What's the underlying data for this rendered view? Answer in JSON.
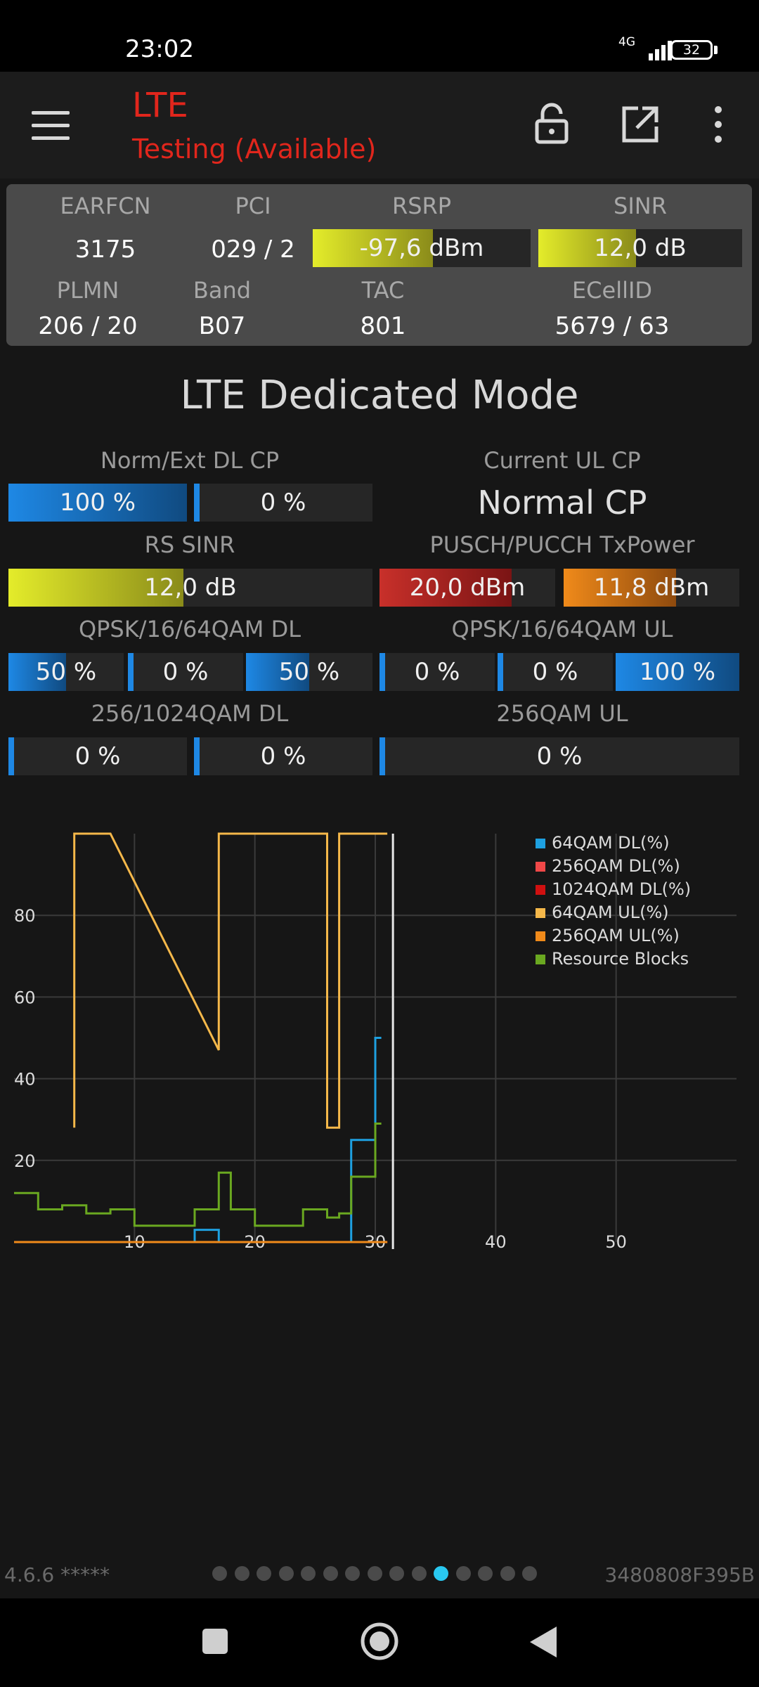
{
  "status_bar": {
    "time": "23:02",
    "network": "4G",
    "battery": "32"
  },
  "app_bar": {
    "title": "LTE",
    "subtitle": "Testing (Available)"
  },
  "info": {
    "earfcn_label": "EARFCN",
    "earfcn": "3175",
    "pci_label": "PCI",
    "pci": "029 / 2",
    "rsrp_label": "RSRP",
    "rsrp": "-97,6 dBm",
    "rsrp_level": 0.55,
    "sinr_label": "SINR",
    "sinr": "12,0 dB",
    "sinr_level": 0.48,
    "plmn_label": "PLMN",
    "plmn": "206 / 20",
    "band_label": "Band",
    "band": "B07",
    "tac_label": "TAC",
    "tac": "801",
    "ecellid_label": "ECellID",
    "ecellid": "5679 / 63"
  },
  "dedicated": {
    "title": "LTE Dedicated Mode",
    "dl_cp_label": "Norm/Ext DL CP",
    "dl_cp_norm": "100 %",
    "dl_cp_norm_level": 1.0,
    "dl_cp_ext": "0 %",
    "dl_cp_ext_level": 0.0,
    "ul_cp_label": "Current UL CP",
    "ul_cp_value": "Normal CP",
    "rs_sinr_label": "RS SINR",
    "rs_sinr": "12,0 dB",
    "rs_sinr_level": 0.48,
    "txpower_label": "PUSCH/PUCCH TxPower",
    "pusch": "20,0 dBm",
    "pusch_level": 0.75,
    "pucch": "11,8 dBm",
    "pucch_level": 0.64,
    "qam_dl_label": "QPSK/16/64QAM DL",
    "qam_dl": [
      "50 %",
      "0 %",
      "50 %"
    ],
    "qam_dl_levels": [
      0.5,
      0.0,
      0.5
    ],
    "qam_ul_label": "QPSK/16/64QAM UL",
    "qam_ul": [
      "0 %",
      "0 %",
      "100 %"
    ],
    "qam_ul_levels": [
      0.0,
      0.0,
      1.0
    ],
    "qam256_dl_label": "256/1024QAM DL",
    "qam256_dl": [
      "0 %",
      "0 %"
    ],
    "qam256_ul_label": "256QAM UL",
    "qam256_ul": "0 %"
  },
  "chart_data": {
    "type": "line",
    "x_ticks": [
      10,
      20,
      30,
      40,
      50
    ],
    "y_ticks": [
      20,
      40,
      60,
      80
    ],
    "xlim": [
      0,
      60
    ],
    "ylim": [
      0,
      100
    ],
    "grid": true,
    "legend_position": "top-right",
    "series": [
      {
        "name": "64QAM DL(%)",
        "color": "#1ea0e0",
        "x": [
          0,
          15,
          15,
          17,
          17,
          28,
          28,
          30,
          30,
          30.5,
          30.5
        ],
        "y": [
          0,
          0,
          3,
          3,
          0,
          0,
          25,
          25,
          50,
          50,
          50
        ]
      },
      {
        "name": "256QAM DL(%)",
        "color": "#f04848",
        "x": [
          0,
          31
        ],
        "y": [
          0,
          0
        ]
      },
      {
        "name": "1024QAM DL(%)",
        "color": "#d01010",
        "x": [
          0,
          31
        ],
        "y": [
          0,
          0
        ]
      },
      {
        "name": "64QAM UL(%)",
        "color": "#f5b84a",
        "x": [
          5,
          5,
          8,
          8,
          17,
          17,
          26,
          26,
          27,
          27,
          31
        ],
        "y": [
          28,
          100,
          100,
          100,
          47,
          100,
          100,
          28,
          28,
          100,
          100
        ]
      },
      {
        "name": "256QAM UL(%)",
        "color": "#f08a1a",
        "x": [
          0,
          31
        ],
        "y": [
          0,
          0
        ]
      },
      {
        "name": "Resource Blocks",
        "color": "#6aa820",
        "x": [
          0,
          2,
          2,
          4,
          4,
          6,
          6,
          8,
          8,
          10,
          10,
          15,
          15,
          17,
          17,
          18,
          18,
          20,
          20,
          24,
          24,
          26,
          26,
          27,
          27,
          28,
          28,
          30,
          30,
          30.5
        ],
        "y": [
          12,
          12,
          8,
          8,
          9,
          9,
          7,
          7,
          8,
          8,
          4,
          4,
          8,
          8,
          17,
          17,
          8,
          8,
          4,
          4,
          8,
          8,
          6,
          6,
          7,
          7,
          16,
          16,
          29,
          29
        ]
      }
    ]
  },
  "footer": {
    "version": "4.6.6 *****",
    "device_id": "3480808F395B",
    "page_count": 15,
    "active_page": 10
  }
}
